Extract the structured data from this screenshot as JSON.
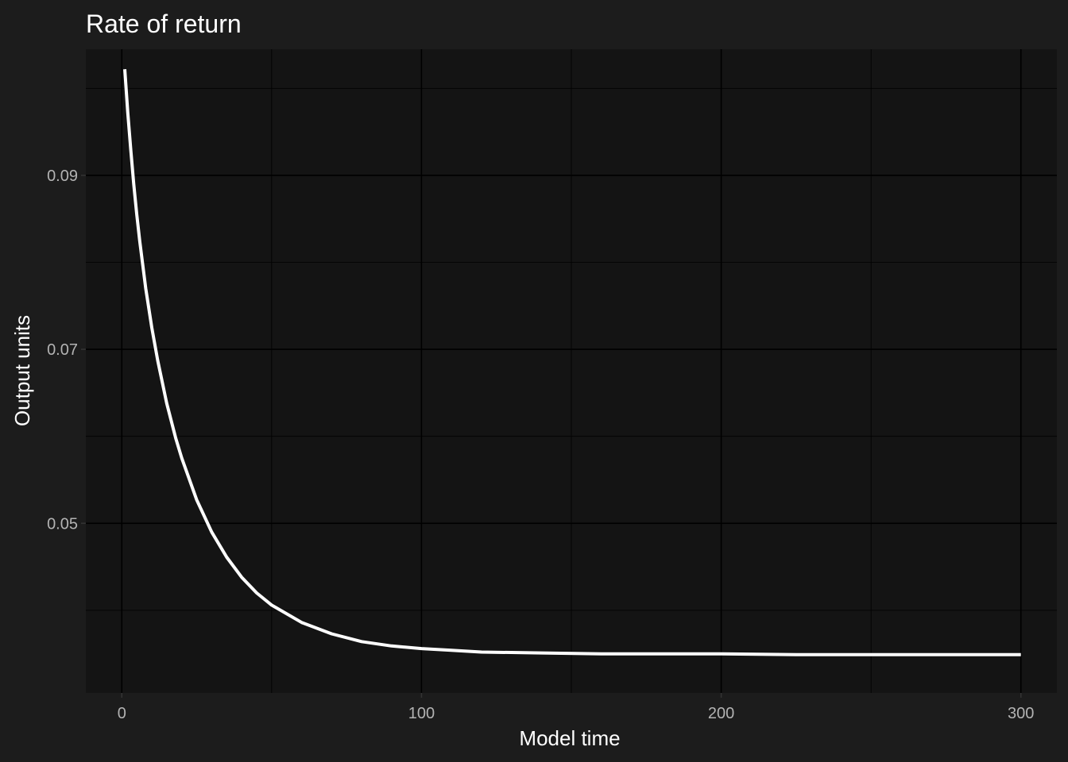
{
  "chart_data": {
    "type": "line",
    "title": "Rate of return",
    "xlabel": "Model time",
    "ylabel": "Output units",
    "xlim": [
      -12,
      312
    ],
    "ylim": [
      0.0305,
      0.1045
    ],
    "x_ticks": [
      0,
      100,
      200,
      300
    ],
    "x_tick_labels": [
      "0",
      "100",
      "200",
      "300"
    ],
    "x_minor_ticks": [
      50,
      150,
      250
    ],
    "y_ticks": [
      0.05,
      0.07,
      0.09
    ],
    "y_tick_labels": [
      "0.05",
      "0.07",
      "0.09"
    ],
    "y_minor_ticks": [
      0.04,
      0.06,
      0.08,
      0.1
    ],
    "grid": true,
    "legend": "none",
    "colors": {
      "background": "#1c1c1c",
      "panel": "#141414",
      "grid": "#000000",
      "line": "#ffffff"
    },
    "series": [
      {
        "x": [
          1,
          2,
          3,
          4,
          5,
          6,
          8,
          10,
          12,
          15,
          18,
          20,
          25,
          30,
          35,
          40,
          45,
          50,
          60,
          70,
          80,
          90,
          100,
          110,
          120,
          140,
          160,
          180,
          200,
          225,
          250,
          275,
          300
        ],
        "values": [
          0.1022,
          0.0972,
          0.0929,
          0.089,
          0.0855,
          0.0824,
          0.077,
          0.0725,
          0.0687,
          0.0638,
          0.0598,
          0.0575,
          0.0527,
          0.049,
          0.0461,
          0.0438,
          0.042,
          0.0406,
          0.0386,
          0.0373,
          0.0364,
          0.0359,
          0.0356,
          0.0354,
          0.0352,
          0.0351,
          0.035,
          0.035,
          0.035,
          0.0349,
          0.0349,
          0.0349,
          0.0349
        ]
      }
    ]
  }
}
